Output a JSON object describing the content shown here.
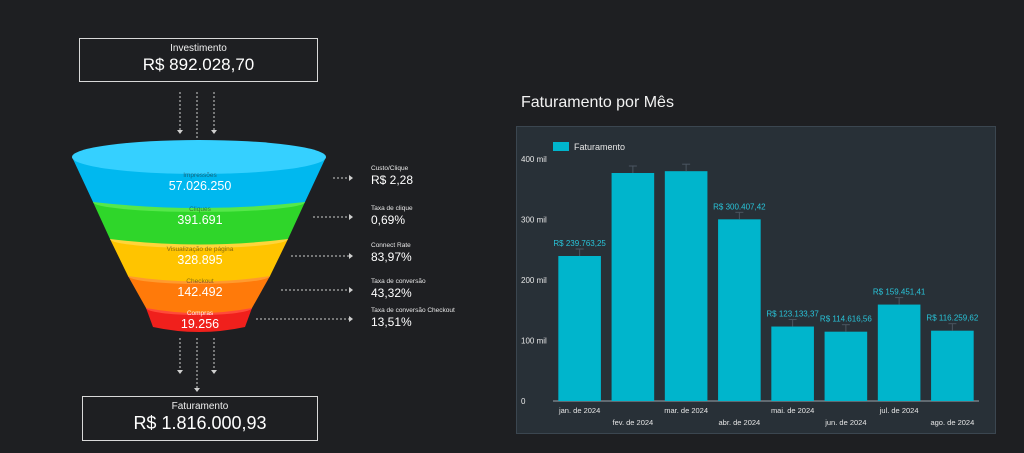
{
  "investment": {
    "label": "Investimento",
    "value": "R$ 892.028,70"
  },
  "revenue_total": {
    "label": "Faturamento",
    "value": "R$ 1.816.000,93"
  },
  "funnel": [
    {
      "label": "Impressões",
      "value": "57.026.250",
      "color": "#00b8ef"
    },
    {
      "label": "Cliques",
      "value": "391.691",
      "color": "#2fd62a"
    },
    {
      "label": "Visualização de página",
      "value": "328.895",
      "color": "#ffc400"
    },
    {
      "label": "Checkout",
      "value": "142.492",
      "color": "#ff7a0a"
    },
    {
      "label": "Compras",
      "value": "19.256",
      "color": "#f0201c"
    }
  ],
  "metrics": [
    {
      "label": "Custo/Clique",
      "value": "R$ 2,28"
    },
    {
      "label": "Taxa de clique",
      "value": "0,69%"
    },
    {
      "label": "Connect Rate",
      "value": "83,97%"
    },
    {
      "label": "Taxa de conversão",
      "value": "43,32%"
    },
    {
      "label": "Taxa de conversão Checkout",
      "value": "13,51%"
    }
  ],
  "chart_title": "Faturamento por Mês",
  "chart_data": {
    "type": "bar",
    "legend": "Faturamento",
    "legend_position": "top-left",
    "bar_color": "#00b5cc",
    "categories": [
      "jan. de 2024",
      "fev. de 2024",
      "mar. de 2024",
      "abr. de 2024",
      "mai. de 2024",
      "jun. de 2024",
      "jul. de 2024",
      "ago. de 2024"
    ],
    "values": [
      239763.25,
      377000,
      380000,
      300407.42,
      123133.37,
      114616.56,
      159451.41,
      116259.62
    ],
    "data_labels": [
      "R$ 239.763,25",
      "",
      "",
      "R$ 300.407,42",
      "R$ 123.133,37",
      "R$ 114.616,56",
      "R$ 159.451,41",
      "R$ 116.259,62"
    ],
    "yticks": [
      0,
      100000,
      200000,
      300000,
      400000
    ],
    "ytick_labels": [
      "0",
      "100 mil",
      "200 mil",
      "300 mil",
      "400 mil"
    ],
    "ylim": [
      0,
      420000
    ]
  }
}
